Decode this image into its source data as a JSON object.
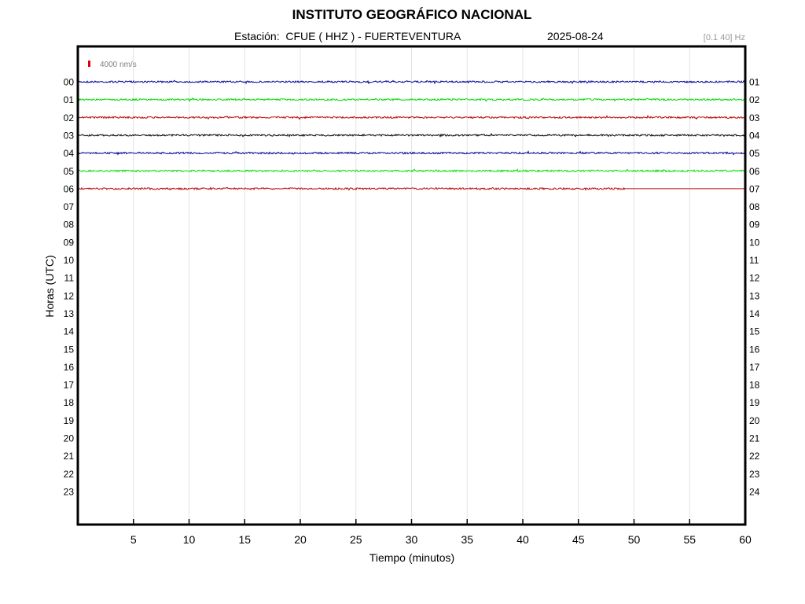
{
  "header": {
    "title": "INSTITUTO GEOGRÁFICO NACIONAL",
    "station_label": "Estación:",
    "station": "CFUE ( HHZ ) - FUERTEVENTURA",
    "date": "2025-08-24",
    "filter": "[0.1 40] Hz"
  },
  "chart_data": {
    "type": "line",
    "title": "INSTITUTO GEOGRÁFICO NACIONAL",
    "xlabel": "Tiempo (minutos)",
    "ylabel": "Horas (UTC)",
    "xlim": [
      0,
      60
    ],
    "x_ticks": [
      "5",
      "10",
      "15",
      "20",
      "25",
      "30",
      "35",
      "40",
      "45",
      "50",
      "55",
      "60"
    ],
    "left_hours": [
      "00",
      "01",
      "02",
      "03",
      "04",
      "05",
      "06",
      "07",
      "08",
      "09",
      "10",
      "11",
      "12",
      "13",
      "14",
      "15",
      "16",
      "17",
      "18",
      "19",
      "20",
      "21",
      "22",
      "23"
    ],
    "right_hours": [
      "01",
      "02",
      "03",
      "04",
      "05",
      "06",
      "07",
      "08",
      "09",
      "10",
      "11",
      "12",
      "13",
      "14",
      "15",
      "16",
      "17",
      "18",
      "19",
      "20",
      "21",
      "22",
      "23",
      "24"
    ],
    "scale_label": "4000 nm/s",
    "scale_color": "#e00000",
    "grid": true,
    "traces": [
      {
        "hour": "00",
        "color": "#000099",
        "end_minute": 60
      },
      {
        "hour": "01",
        "color": "#00dd00",
        "end_minute": 60
      },
      {
        "hour": "02",
        "color": "#bb0000",
        "end_minute": 60
      },
      {
        "hour": "03",
        "color": "#000000",
        "end_minute": 60
      },
      {
        "hour": "04",
        "color": "#000099",
        "end_minute": 60
      },
      {
        "hour": "05",
        "color": "#00dd00",
        "end_minute": 60
      },
      {
        "hour": "06",
        "color": "#bb0000",
        "end_minute": 49.2
      }
    ]
  }
}
